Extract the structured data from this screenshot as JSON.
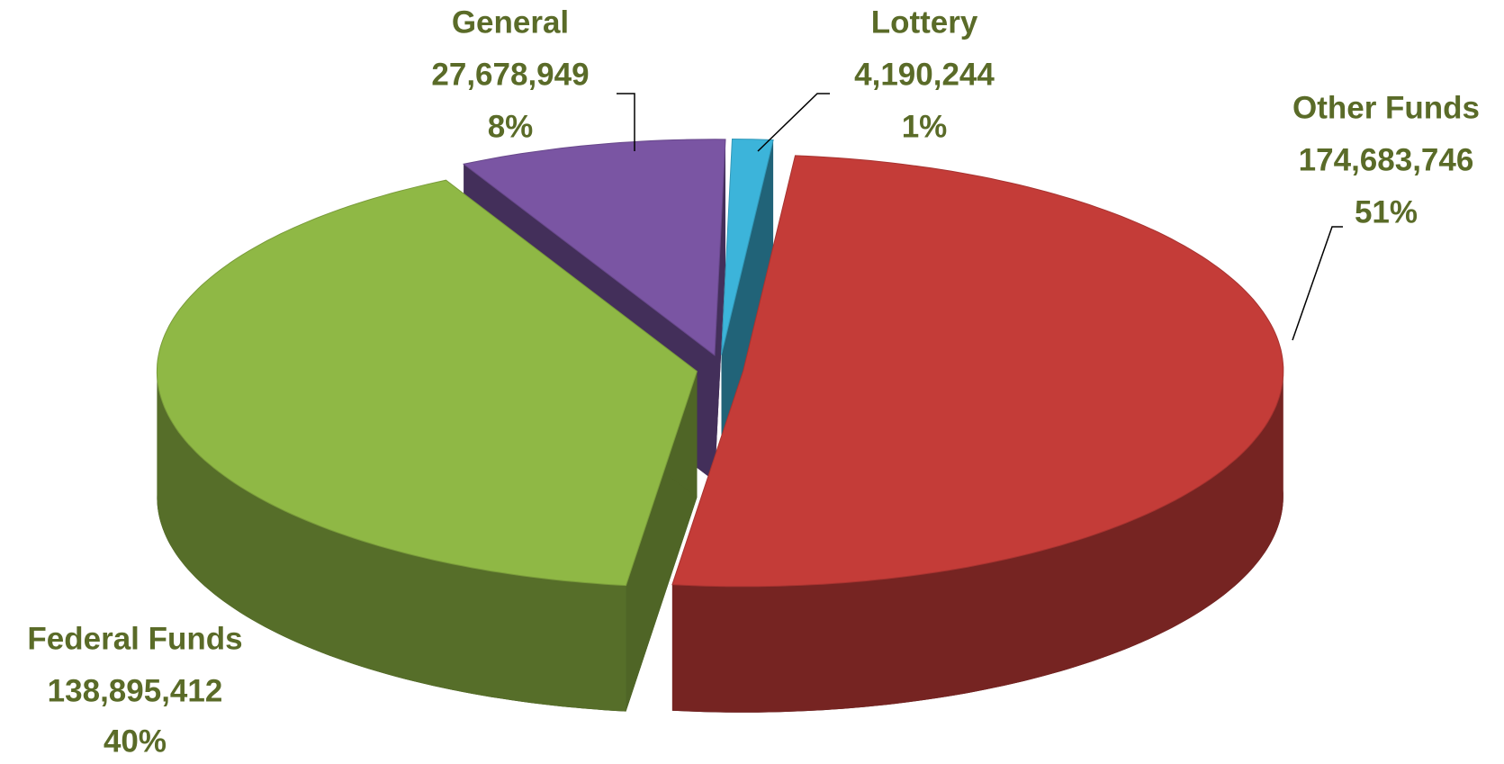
{
  "chart_data": {
    "type": "pie3d",
    "categories": [
      "Lottery",
      "Other Funds",
      "Federal Funds",
      "General"
    ],
    "values": [
      4190244,
      174683746,
      138895412,
      27678949
    ],
    "value_labels": [
      "4,190,244",
      "174,683,746",
      "138,895,412",
      "27,678,949"
    ],
    "percents": [
      1,
      51,
      40,
      8
    ],
    "percent_labels": [
      "1%",
      "51%",
      "40%",
      "8%"
    ],
    "colors": [
      "#3cb4da",
      "#c43c38",
      "#8fb845",
      "#7a55a3"
    ]
  }
}
